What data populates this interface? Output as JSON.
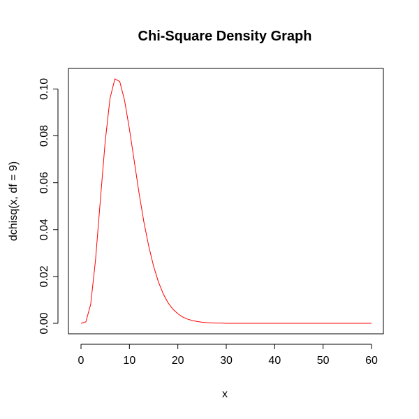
{
  "chart_data": {
    "type": "line",
    "title": "Chi-Square Density Graph",
    "xlabel": "x",
    "ylabel": "dchisq(x, df = 9)",
    "xlim": [
      0,
      60
    ],
    "ylim": [
      0,
      0.104
    ],
    "x_ticks": [
      0,
      10,
      20,
      30,
      40,
      50,
      60
    ],
    "x_tick_labels": [
      "0",
      "10",
      "20",
      "30",
      "40",
      "50",
      "60"
    ],
    "y_ticks": [
      0.0,
      0.02,
      0.04,
      0.06,
      0.08,
      0.1
    ],
    "y_tick_labels": [
      "0.00",
      "0.02",
      "0.04",
      "0.06",
      "0.08",
      "0.10"
    ],
    "grid": false,
    "legend": "none",
    "line_color": "#ff0000",
    "series": [
      {
        "x": [
          0,
          1,
          2,
          3,
          4,
          5,
          6,
          7,
          8,
          9,
          10,
          11,
          12,
          13,
          14,
          15,
          16,
          17,
          18,
          19,
          20,
          21,
          22,
          23,
          24,
          25,
          26,
          27,
          28,
          29,
          30,
          31,
          32,
          33,
          34,
          35,
          36,
          37,
          38,
          39,
          40,
          41,
          42,
          43,
          44,
          45,
          46,
          47,
          48,
          49,
          50,
          51,
          52,
          53,
          54,
          55,
          56,
          57,
          58,
          59,
          60
        ],
        "values": [
          0,
          0.0006,
          0.0081,
          0.0271,
          0.0527,
          0.0777,
          0.0961,
          0.1043,
          0.1032,
          0.0951,
          0.0829,
          0.0692,
          0.0554,
          0.0431,
          0.0328,
          0.0243,
          0.0176,
          0.0125,
          0.0087,
          0.006,
          0.0041,
          0.0027,
          0.0018,
          0.0012,
          0.0008,
          0.0005,
          0.0003,
          0.0002,
          0.0001,
          0.0001,
          0.0,
          0.0,
          0.0,
          0.0,
          0.0,
          0.0,
          0.0,
          0.0,
          0.0,
          0.0,
          0.0,
          0.0,
          0.0,
          0.0,
          0.0,
          0.0,
          0.0,
          0.0,
          0.0,
          0.0,
          0.0,
          0.0,
          0.0,
          0.0,
          0.0,
          0.0,
          0.0,
          0.0,
          0.0,
          0.0,
          0.0
        ]
      }
    ]
  }
}
